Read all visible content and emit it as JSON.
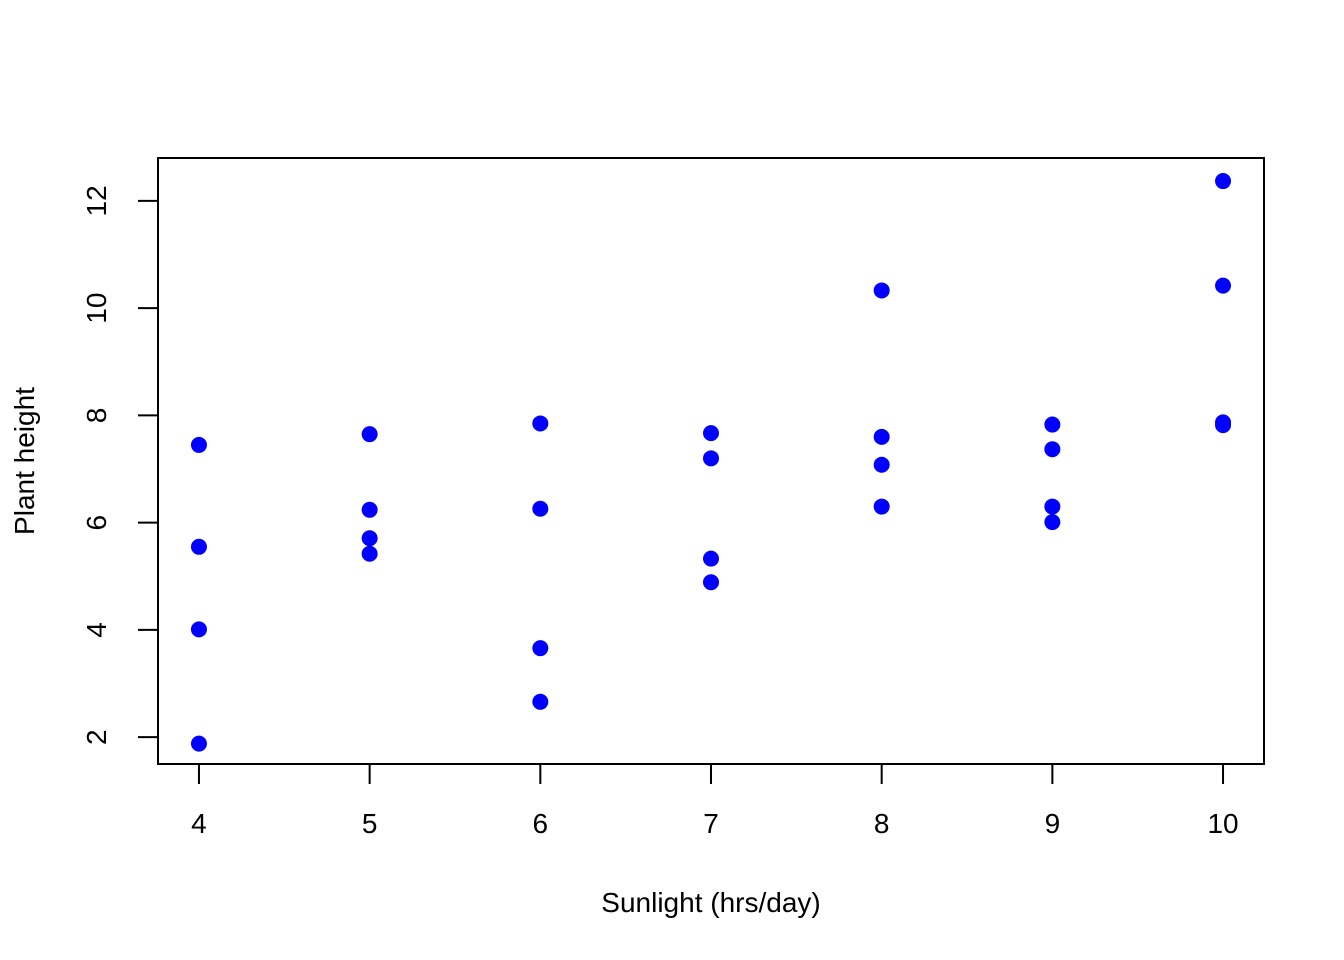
{
  "chart_data": {
    "type": "scatter",
    "title": "",
    "xlabel": "Sunlight (hrs/day)",
    "ylabel": "Plant height",
    "xlim": [
      3.76,
      10.24
    ],
    "ylim": [
      1.5,
      12.8
    ],
    "xticks": [
      4,
      5,
      6,
      7,
      8,
      9,
      10
    ],
    "yticks": [
      2,
      4,
      6,
      8,
      10,
      12
    ],
    "grid": false,
    "legend": "none",
    "point_color": "#0000ff",
    "points": [
      {
        "x": 4,
        "y": 7.45
      },
      {
        "x": 4,
        "y": 5.55
      },
      {
        "x": 4,
        "y": 4.01
      },
      {
        "x": 4,
        "y": 1.88
      },
      {
        "x": 5,
        "y": 7.65
      },
      {
        "x": 5,
        "y": 6.24
      },
      {
        "x": 5,
        "y": 5.71
      },
      {
        "x": 5,
        "y": 5.42
      },
      {
        "x": 6,
        "y": 7.85
      },
      {
        "x": 6,
        "y": 6.26
      },
      {
        "x": 6,
        "y": 3.66
      },
      {
        "x": 6,
        "y": 2.66
      },
      {
        "x": 7,
        "y": 7.67
      },
      {
        "x": 7,
        "y": 7.2
      },
      {
        "x": 7,
        "y": 5.33
      },
      {
        "x": 7,
        "y": 4.89
      },
      {
        "x": 8,
        "y": 10.33
      },
      {
        "x": 8,
        "y": 7.6
      },
      {
        "x": 8,
        "y": 7.08
      },
      {
        "x": 8,
        "y": 6.3
      },
      {
        "x": 9,
        "y": 7.83
      },
      {
        "x": 9,
        "y": 7.37
      },
      {
        "x": 9,
        "y": 6.3
      },
      {
        "x": 9,
        "y": 6.01
      },
      {
        "x": 10,
        "y": 12.37
      },
      {
        "x": 10,
        "y": 10.42
      },
      {
        "x": 10,
        "y": 7.87
      },
      {
        "x": 10,
        "y": 7.82
      }
    ]
  }
}
